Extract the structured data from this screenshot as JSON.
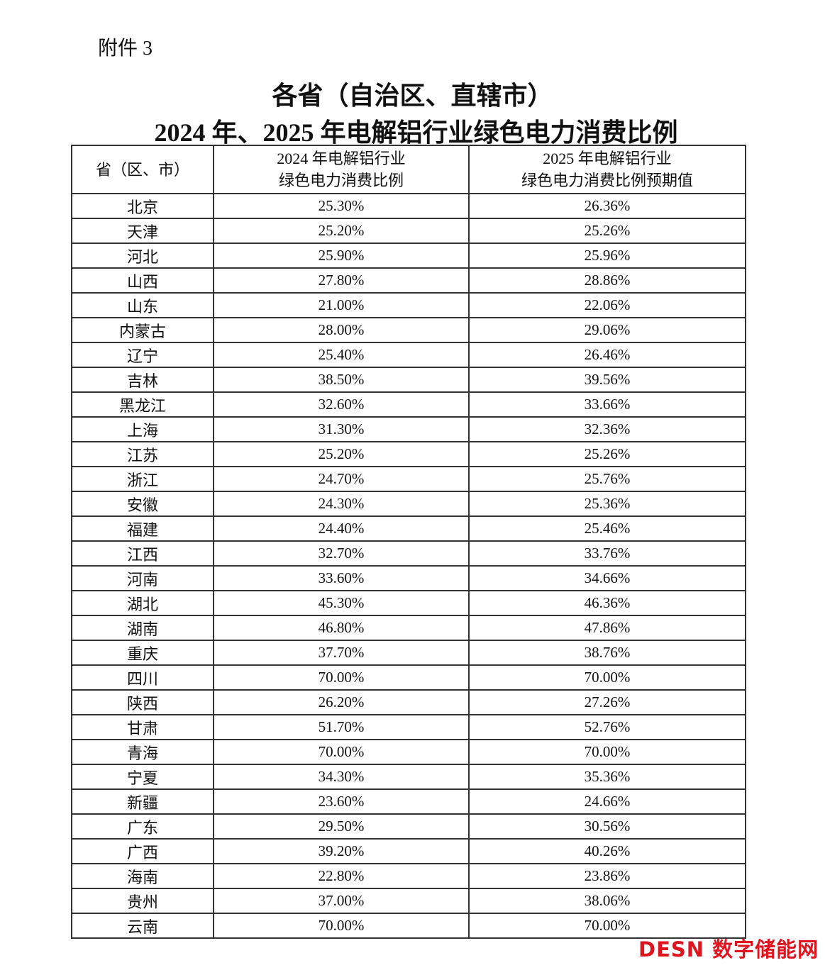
{
  "attachment_label": "附件 3",
  "title_line1": "各省（自治区、直辖市）",
  "title_line2": "2024 年、2025 年电解铝行业绿色电力消费比例",
  "table": {
    "headers": [
      "省（区、市）",
      "2024 年电解铝行业\n绿色电力消费比例",
      "2025 年电解铝行业\n绿色电力消费比例预期值"
    ],
    "rows": [
      [
        "北京",
        "25.30%",
        "26.36%"
      ],
      [
        "天津",
        "25.20%",
        "25.26%"
      ],
      [
        "河北",
        "25.90%",
        "25.96%"
      ],
      [
        "山西",
        "27.80%",
        "28.86%"
      ],
      [
        "山东",
        "21.00%",
        "22.06%"
      ],
      [
        "内蒙古",
        "28.00%",
        "29.06%"
      ],
      [
        "辽宁",
        "25.40%",
        "26.46%"
      ],
      [
        "吉林",
        "38.50%",
        "39.56%"
      ],
      [
        "黑龙江",
        "32.60%",
        "33.66%"
      ],
      [
        "上海",
        "31.30%",
        "32.36%"
      ],
      [
        "江苏",
        "25.20%",
        "25.26%"
      ],
      [
        "浙江",
        "24.70%",
        "25.76%"
      ],
      [
        "安徽",
        "24.30%",
        "25.36%"
      ],
      [
        "福建",
        "24.40%",
        "25.46%"
      ],
      [
        "江西",
        "32.70%",
        "33.76%"
      ],
      [
        "河南",
        "33.60%",
        "34.66%"
      ],
      [
        "湖北",
        "45.30%",
        "46.36%"
      ],
      [
        "湖南",
        "46.80%",
        "47.86%"
      ],
      [
        "重庆",
        "37.70%",
        "38.76%"
      ],
      [
        "四川",
        "70.00%",
        "70.00%"
      ],
      [
        "陕西",
        "26.20%",
        "27.26%"
      ],
      [
        "甘肃",
        "51.70%",
        "52.76%"
      ],
      [
        "青海",
        "70.00%",
        "70.00%"
      ],
      [
        "宁夏",
        "34.30%",
        "35.36%"
      ],
      [
        "新疆",
        "23.60%",
        "24.66%"
      ],
      [
        "广东",
        "29.50%",
        "30.56%"
      ],
      [
        "广西",
        "39.20%",
        "40.26%"
      ],
      [
        "海南",
        "22.80%",
        "23.86%"
      ],
      [
        "贵州",
        "37.00%",
        "38.06%"
      ],
      [
        "云南",
        "70.00%",
        "70.00%"
      ]
    ]
  },
  "watermark": {
    "text": "DESN 数字储能网",
    "color": "#e0141e"
  }
}
